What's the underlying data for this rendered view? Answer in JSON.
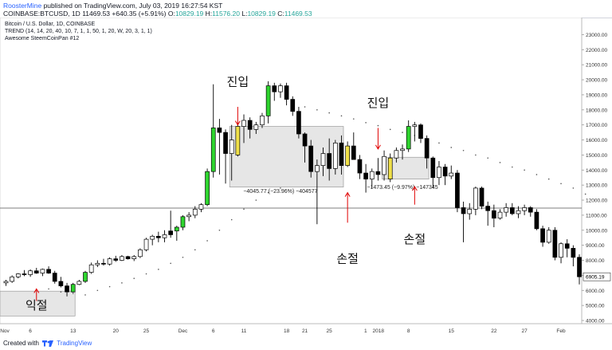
{
  "header": {
    "author": "RoosterMine",
    "published_text": "published on TradingView.com, July 03, 2019 16:27:54 KST",
    "symbol_line": {
      "symbol": "COINBASE:BTCUSD, 1D",
      "last": "11469.53",
      "change": "+640.35 (+5.91%)",
      "o_label": "O:",
      "o_value": "10829.19",
      "h_label": "H:",
      "h_value": "11576.20",
      "l_label": "L:",
      "l_value": "10829.19",
      "c_label": "C:",
      "c_value": "11469.53"
    }
  },
  "legend": {
    "title": "Bitcoin / U.S. Dollar, 1D, COINBASE",
    "indicator1": "TREND (14, 14, 20, 40, 10, 7, 1, 1, 50, 1, 20, W, 20, 3, 1, 1)",
    "indicator2": "Awesome SteemCoinPan #12"
  },
  "footer": {
    "created_with": "Created with",
    "brand": "TradingView"
  },
  "colors": {
    "up_plain": "#ffffff",
    "down": "#000000",
    "up_green": "#2fd52f",
    "yellow": "#f0e04a",
    "box": "#e6e6e6",
    "arrow": "#e00000",
    "axis_text": "#333333",
    "price_tag_bg": "#ffffff"
  },
  "chart_data": {
    "type": "candlestick",
    "title": "Bitcoin / U.S. Dollar, 1D, COINBASE",
    "ylim": [
      4000,
      23500
    ],
    "y_ticks": [
      "23000.00",
      "22000.00",
      "21000.00",
      "20000.00",
      "19000.00",
      "18000.00",
      "17000.00",
      "16000.00",
      "15000.00",
      "14000.00",
      "13000.00",
      "12000.00",
      "11000.00",
      "10000.00",
      "9000.00",
      "8000.00",
      "7000.00",
      "6000.00",
      "5000.00",
      "4000.00"
    ],
    "x_ticks": [
      {
        "label": "Nov",
        "index": 0
      },
      {
        "label": "6",
        "index": 4
      },
      {
        "label": "13",
        "index": 11
      },
      {
        "label": "20",
        "index": 18
      },
      {
        "label": "25",
        "index": 23
      },
      {
        "label": "Dec",
        "index": 29
      },
      {
        "label": "6",
        "index": 34
      },
      {
        "label": "11",
        "index": 39
      },
      {
        "label": "18",
        "index": 46
      },
      {
        "label": "21",
        "index": 49
      },
      {
        "label": "25",
        "index": 53
      },
      {
        "label": "1",
        "index": 60
      },
      {
        "label": "2018",
        "index": 60
      },
      {
        "label": "8",
        "index": 66
      },
      {
        "label": "15",
        "index": 73
      },
      {
        "label": "22",
        "index": 80
      },
      {
        "label": "27",
        "index": 85
      },
      {
        "label": "Feb",
        "index": 91
      }
    ],
    "current_price_label": "6905.19",
    "horizontal_line": 11469.53,
    "candles": [
      {
        "o": 6500,
        "h": 6700,
        "l": 6300,
        "c": 6600,
        "k": "u"
      },
      {
        "o": 6600,
        "h": 7000,
        "l": 6500,
        "c": 6900,
        "k": "u"
      },
      {
        "o": 6900,
        "h": 7150,
        "l": 6800,
        "c": 7100,
        "k": "u"
      },
      {
        "o": 7100,
        "h": 7350,
        "l": 6950,
        "c": 7050,
        "k": "d"
      },
      {
        "o": 7050,
        "h": 7400,
        "l": 6900,
        "c": 7300,
        "k": "u"
      },
      {
        "o": 7300,
        "h": 7500,
        "l": 7100,
        "c": 7150,
        "k": "d"
      },
      {
        "o": 7150,
        "h": 7450,
        "l": 6950,
        "c": 7400,
        "k": "u"
      },
      {
        "o": 7400,
        "h": 7600,
        "l": 7100,
        "c": 7150,
        "k": "d"
      },
      {
        "o": 7150,
        "h": 7300,
        "l": 6450,
        "c": 6600,
        "k": "d"
      },
      {
        "o": 6600,
        "h": 6900,
        "l": 6200,
        "c": 6300,
        "k": "d"
      },
      {
        "o": 6300,
        "h": 6500,
        "l": 5600,
        "c": 5900,
        "k": "d"
      },
      {
        "o": 5900,
        "h": 6500,
        "l": 5850,
        "c": 6400,
        "k": "g"
      },
      {
        "o": 6400,
        "h": 6700,
        "l": 6350,
        "c": 6600,
        "k": "u"
      },
      {
        "o": 6600,
        "h": 7300,
        "l": 6500,
        "c": 7200,
        "k": "g"
      },
      {
        "o": 7200,
        "h": 7850,
        "l": 7100,
        "c": 7700,
        "k": "u"
      },
      {
        "o": 7700,
        "h": 8000,
        "l": 7550,
        "c": 7800,
        "k": "u"
      },
      {
        "o": 7800,
        "h": 8100,
        "l": 7650,
        "c": 7750,
        "k": "d"
      },
      {
        "o": 7750,
        "h": 8200,
        "l": 7650,
        "c": 8100,
        "k": "u"
      },
      {
        "o": 8100,
        "h": 8300,
        "l": 7900,
        "c": 8000,
        "k": "d"
      },
      {
        "o": 8000,
        "h": 8350,
        "l": 7950,
        "c": 8250,
        "k": "u"
      },
      {
        "o": 8250,
        "h": 8300,
        "l": 8050,
        "c": 8100,
        "k": "d"
      },
      {
        "o": 8100,
        "h": 8350,
        "l": 7950,
        "c": 8250,
        "k": "u"
      },
      {
        "o": 8250,
        "h": 8800,
        "l": 8150,
        "c": 8700,
        "k": "u"
      },
      {
        "o": 8700,
        "h": 9500,
        "l": 8600,
        "c": 9400,
        "k": "u"
      },
      {
        "o": 9400,
        "h": 9700,
        "l": 9000,
        "c": 9600,
        "k": "u"
      },
      {
        "o": 9600,
        "h": 9900,
        "l": 9200,
        "c": 9500,
        "k": "d"
      },
      {
        "o": 9500,
        "h": 10000,
        "l": 9200,
        "c": 9700,
        "k": "u"
      },
      {
        "o": 9700,
        "h": 11300,
        "l": 9500,
        "c": 9950,
        "k": "d"
      },
      {
        "o": 9950,
        "h": 10300,
        "l": 9300,
        "c": 10200,
        "k": "g"
      },
      {
        "o": 10200,
        "h": 11000,
        "l": 10000,
        "c": 10900,
        "k": "g"
      },
      {
        "o": 10900,
        "h": 11200,
        "l": 10600,
        "c": 11000,
        "k": "u"
      },
      {
        "o": 11000,
        "h": 11600,
        "l": 10800,
        "c": 11400,
        "k": "u"
      },
      {
        "o": 11400,
        "h": 11800,
        "l": 11200,
        "c": 11700,
        "k": "u"
      },
      {
        "o": 11700,
        "h": 14100,
        "l": 11600,
        "c": 13900,
        "k": "g"
      },
      {
        "o": 13900,
        "h": 19700,
        "l": 13500,
        "c": 16800,
        "k": "g"
      },
      {
        "o": 16800,
        "h": 17400,
        "l": 13700,
        "c": 16500,
        "k": "d"
      },
      {
        "o": 16500,
        "h": 16700,
        "l": 13100,
        "c": 15100,
        "k": "d"
      },
      {
        "o": 15100,
        "h": 17000,
        "l": 13300,
        "c": 16000,
        "k": "u"
      },
      {
        "o": 15000,
        "h": 17200,
        "l": 14900,
        "c": 16900,
        "k": "y"
      },
      {
        "o": 16900,
        "h": 17700,
        "l": 15800,
        "c": 17300,
        "k": "u"
      },
      {
        "o": 17300,
        "h": 17500,
        "l": 16100,
        "c": 16700,
        "k": "d"
      },
      {
        "o": 16700,
        "h": 17200,
        "l": 16400,
        "c": 17000,
        "k": "u"
      },
      {
        "o": 17000,
        "h": 17800,
        "l": 16800,
        "c": 17600,
        "k": "u"
      },
      {
        "o": 17600,
        "h": 19900,
        "l": 17100,
        "c": 19600,
        "k": "g"
      },
      {
        "o": 19600,
        "h": 19800,
        "l": 18600,
        "c": 19200,
        "k": "d"
      },
      {
        "o": 19200,
        "h": 19750,
        "l": 18800,
        "c": 19600,
        "k": "u"
      },
      {
        "o": 19600,
        "h": 19800,
        "l": 18300,
        "c": 18700,
        "k": "d"
      },
      {
        "o": 18700,
        "h": 18900,
        "l": 17600,
        "c": 17900,
        "k": "d"
      },
      {
        "o": 17900,
        "h": 18200,
        "l": 16100,
        "c": 16400,
        "k": "d"
      },
      {
        "o": 16400,
        "h": 16500,
        "l": 14500,
        "c": 15600,
        "k": "d"
      },
      {
        "o": 15600,
        "h": 16000,
        "l": 13500,
        "c": 13900,
        "k": "d"
      },
      {
        "o": 13900,
        "h": 14700,
        "l": 10400,
        "c": 14300,
        "k": "u"
      },
      {
        "o": 14300,
        "h": 15500,
        "l": 13600,
        "c": 15100,
        "k": "u"
      },
      {
        "o": 15100,
        "h": 16100,
        "l": 13300,
        "c": 14100,
        "k": "d"
      },
      {
        "o": 14100,
        "h": 16000,
        "l": 13700,
        "c": 15800,
        "k": "u"
      },
      {
        "o": 15800,
        "h": 16300,
        "l": 13700,
        "c": 14300,
        "k": "d"
      },
      {
        "o": 14300,
        "h": 15900,
        "l": 14200,
        "c": 15600,
        "k": "y"
      },
      {
        "o": 15600,
        "h": 16500,
        "l": 14800,
        "c": 14700,
        "k": "d"
      },
      {
        "o": 14700,
        "h": 15000,
        "l": 13400,
        "c": 13800,
        "k": "d"
      },
      {
        "o": 13800,
        "h": 14400,
        "l": 12500,
        "c": 13400,
        "k": "d"
      },
      {
        "o": 13400,
        "h": 14100,
        "l": 12800,
        "c": 13900,
        "k": "u"
      },
      {
        "o": 13900,
        "h": 14800,
        "l": 13300,
        "c": 13700,
        "k": "d"
      },
      {
        "o": 13700,
        "h": 15300,
        "l": 13300,
        "c": 14900,
        "k": "u"
      },
      {
        "o": 13400,
        "h": 15100,
        "l": 13200,
        "c": 14800,
        "k": "y"
      },
      {
        "o": 14800,
        "h": 15500,
        "l": 14500,
        "c": 15300,
        "k": "u"
      },
      {
        "o": 15300,
        "h": 15700,
        "l": 14700,
        "c": 15400,
        "k": "u"
      },
      {
        "o": 15400,
        "h": 17300,
        "l": 15200,
        "c": 16900,
        "k": "g"
      },
      {
        "o": 16900,
        "h": 17200,
        "l": 15900,
        "c": 17000,
        "k": "u"
      },
      {
        "o": 17000,
        "h": 17100,
        "l": 15800,
        "c": 16100,
        "k": "d"
      },
      {
        "o": 16100,
        "h": 16300,
        "l": 14100,
        "c": 14800,
        "k": "d"
      },
      {
        "o": 14800,
        "h": 14900,
        "l": 12800,
        "c": 13500,
        "k": "d"
      },
      {
        "o": 13500,
        "h": 14600,
        "l": 13000,
        "c": 14200,
        "k": "u"
      },
      {
        "o": 14200,
        "h": 14400,
        "l": 13000,
        "c": 13600,
        "k": "d"
      },
      {
        "o": 13600,
        "h": 14300,
        "l": 13400,
        "c": 13800,
        "k": "u"
      },
      {
        "o": 13800,
        "h": 14000,
        "l": 11200,
        "c": 11500,
        "k": "d"
      },
      {
        "o": 11500,
        "h": 11900,
        "l": 9200,
        "c": 11100,
        "k": "d"
      },
      {
        "o": 11100,
        "h": 11800,
        "l": 10700,
        "c": 11400,
        "k": "u"
      },
      {
        "o": 11400,
        "h": 12900,
        "l": 11000,
        "c": 12800,
        "k": "u"
      },
      {
        "o": 12800,
        "h": 12900,
        "l": 11400,
        "c": 11600,
        "k": "d"
      },
      {
        "o": 11600,
        "h": 11900,
        "l": 10300,
        "c": 11300,
        "k": "d"
      },
      {
        "o": 11300,
        "h": 11700,
        "l": 10200,
        "c": 10800,
        "k": "d"
      },
      {
        "o": 10800,
        "h": 11400,
        "l": 10700,
        "c": 11200,
        "k": "u"
      },
      {
        "o": 11200,
        "h": 11800,
        "l": 10900,
        "c": 11500,
        "k": "u"
      },
      {
        "o": 11500,
        "h": 11800,
        "l": 11000,
        "c": 11100,
        "k": "d"
      },
      {
        "o": 11100,
        "h": 11600,
        "l": 10800,
        "c": 11300,
        "k": "u"
      },
      {
        "o": 11300,
        "h": 11700,
        "l": 11000,
        "c": 11500,
        "k": "u"
      },
      {
        "o": 11500,
        "h": 11600,
        "l": 10900,
        "c": 11200,
        "k": "d"
      },
      {
        "o": 11200,
        "h": 11400,
        "l": 10000,
        "c": 10100,
        "k": "d"
      },
      {
        "o": 10100,
        "h": 10300,
        "l": 8900,
        "c": 9200,
        "k": "d"
      },
      {
        "o": 9200,
        "h": 10200,
        "l": 9100,
        "c": 10000,
        "k": "u"
      },
      {
        "o": 10000,
        "h": 10200,
        "l": 8000,
        "c": 8200,
        "k": "d"
      },
      {
        "o": 8200,
        "h": 9200,
        "l": 7800,
        "c": 9100,
        "k": "u"
      },
      {
        "o": 9100,
        "h": 9400,
        "l": 8200,
        "c": 8800,
        "k": "d"
      },
      {
        "o": 8800,
        "h": 9000,
        "l": 7600,
        "c": 8200,
        "k": "d"
      },
      {
        "o": 8200,
        "h": 8400,
        "l": 6400,
        "c": 6905,
        "k": "d"
      }
    ],
    "trend_dots": [
      [
        7,
        6100
      ],
      [
        9,
        5900
      ],
      [
        11,
        5800
      ],
      [
        13,
        5700
      ],
      [
        15,
        6000
      ],
      [
        17,
        6250
      ],
      [
        19,
        6500
      ],
      [
        21,
        6800
      ],
      [
        23,
        7100
      ],
      [
        25,
        7400
      ],
      [
        27,
        7800
      ],
      [
        29,
        8200
      ],
      [
        31,
        8700
      ],
      [
        33,
        9300
      ],
      [
        35,
        10000
      ],
      [
        37,
        10700
      ],
      [
        39,
        11400
      ],
      [
        41,
        12000
      ],
      [
        43,
        12500
      ],
      [
        45,
        12800
      ],
      [
        47,
        18300
      ],
      [
        49,
        18200
      ],
      [
        51,
        18000
      ],
      [
        53,
        17800
      ],
      [
        55,
        17600
      ],
      [
        57,
        17400
      ],
      [
        59,
        17150
      ],
      [
        61,
        16950
      ],
      [
        63,
        16700
      ],
      [
        65,
        16500
      ],
      [
        67,
        16300
      ],
      [
        69,
        16000
      ],
      [
        71,
        15800
      ],
      [
        73,
        15500
      ],
      [
        75,
        15300
      ],
      [
        77,
        15000
      ],
      [
        79,
        14800
      ],
      [
        81,
        14500
      ],
      [
        83,
        14200
      ],
      [
        85,
        14000
      ],
      [
        87,
        13700
      ],
      [
        89,
        13400
      ],
      [
        91,
        13100
      ],
      [
        93,
        12800
      ],
      [
        95,
        12400
      ]
    ],
    "boxes": [
      {
        "x0": 0,
        "x1": 11,
        "y0": 4300,
        "y1": 5950
      },
      {
        "x0": 37,
        "x1": 55,
        "y0": 12870,
        "y1": 16900
      },
      {
        "x0": 62,
        "x1": 69,
        "y0": 13400,
        "y1": 14850
      }
    ],
    "annotations": [
      {
        "text": "진입",
        "index": 38,
        "value": 19600,
        "arrow_from": 18200,
        "arrow_to": 17000
      },
      {
        "text": "손절",
        "index": 56,
        "value": 7850,
        "arrow_from": 10500,
        "arrow_to": 12500
      },
      {
        "text": "진입",
        "index": 61,
        "value": 18200,
        "arrow_from": 16800,
        "arrow_to": 15400
      },
      {
        "text": "손절",
        "index": 67,
        "value": 9150,
        "arrow_from": 11700,
        "arrow_to": 12900
      },
      {
        "text": "익절",
        "index": 5,
        "value": 4750,
        "arrow_from": 5300,
        "arrow_to": 6100
      }
    ],
    "measure_labels": [
      {
        "text": "−4045.77 (−23.96%) −404577",
        "index": 45,
        "value": 12480
      },
      {
        "text": "−1473.45 (−9.97%) −147345",
        "index": 65,
        "value": 12750
      }
    ]
  }
}
